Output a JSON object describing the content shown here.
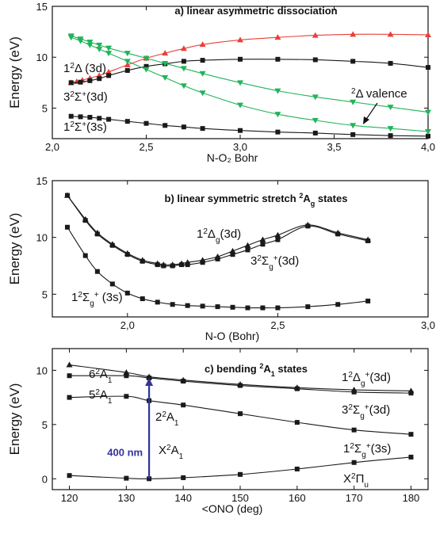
{
  "chart_data": [
    {
      "type": "line",
      "title": "a) linear asymmetric dissociation",
      "xlabel": "N-O₂ Bohr",
      "ylabel": "Energy (eV)",
      "xlim": [
        2.0,
        4.0
      ],
      "ylim": [
        2,
        15
      ],
      "xticks": [
        "2,0",
        "2,5",
        "3,0",
        "3,5",
        "4,0"
      ],
      "yticks": [
        "5",
        "10",
        "15"
      ],
      "series": [
        {
          "color": "#e8403a",
          "marker": "triangle-up",
          "x": [
            2.1,
            2.13,
            2.16,
            2.2,
            2.25,
            2.3,
            2.4,
            2.5,
            2.6,
            2.7,
            2.8,
            3.0,
            3.2,
            3.4,
            3.6,
            3.8,
            4.0
          ],
          "values": [
            7.5,
            7.6,
            7.75,
            7.95,
            8.2,
            8.55,
            9.25,
            9.9,
            10.4,
            10.85,
            11.25,
            11.7,
            11.95,
            12.15,
            12.25,
            12.25,
            12.2
          ]
        },
        {
          "color": "#1a1a1a",
          "marker": "square",
          "x": [
            2.1,
            2.15,
            2.2,
            2.25,
            2.3,
            2.4,
            2.5,
            2.6,
            2.7,
            2.8,
            3.0,
            3.2,
            3.4,
            3.6,
            3.8,
            4.0
          ],
          "values": [
            7.5,
            7.55,
            7.7,
            7.9,
            8.2,
            8.7,
            9.1,
            9.35,
            9.6,
            9.7,
            9.8,
            9.8,
            9.75,
            9.6,
            9.4,
            9.0
          ]
        },
        {
          "color": "#1a1a1a",
          "marker": "square",
          "x": [
            2.1,
            2.15,
            2.2,
            2.25,
            2.3,
            2.4,
            2.5,
            2.6,
            2.7,
            2.8,
            3.0,
            3.2,
            3.4,
            3.6,
            3.8,
            4.0
          ],
          "values": [
            4.2,
            4.15,
            4.1,
            4.0,
            3.9,
            3.7,
            3.5,
            3.3,
            3.15,
            3.0,
            2.8,
            2.65,
            2.55,
            2.4,
            2.3,
            2.25
          ]
        },
        {
          "color": "#20b45a",
          "marker": "triangle-down",
          "x": [
            2.1,
            2.15,
            2.2,
            2.25,
            2.3,
            2.4,
            2.5,
            2.6,
            2.7,
            2.8,
            3.0,
            3.2,
            3.4,
            3.6,
            3.8,
            4.0
          ],
          "values": [
            12.1,
            11.8,
            11.5,
            11.2,
            10.9,
            10.4,
            9.9,
            9.4,
            8.9,
            8.4,
            7.5,
            6.7,
            6.1,
            5.6,
            5.1,
            4.6
          ]
        },
        {
          "color": "#20b45a",
          "marker": "triangle-down",
          "x": [
            2.1,
            2.15,
            2.2,
            2.25,
            2.3,
            2.4,
            2.5,
            2.6,
            2.7,
            2.8,
            3.0,
            3.2,
            3.4,
            3.6,
            3.8,
            4.0
          ],
          "values": [
            11.95,
            11.6,
            11.2,
            10.8,
            10.4,
            9.6,
            8.8,
            8.0,
            7.2,
            6.5,
            5.3,
            4.4,
            3.8,
            3.3,
            3.0,
            2.7
          ]
        }
      ],
      "annotations": [
        {
          "main": "1",
          "sup": "2",
          "rest": "Δ (3d)"
        },
        {
          "main": "3",
          "sup": "2",
          "rest": "Σ",
          "sup2": "+",
          "rest2": "(3d)"
        },
        {
          "main": "1",
          "sup": "2",
          "rest": "Σ",
          "sup2": "+",
          "rest2": "(3s)"
        },
        {
          "main": "",
          "sup": "2",
          "rest": "Δ valence"
        }
      ]
    },
    {
      "type": "line",
      "title": "b) linear symmetric stretch",
      "title_sup": "2",
      "title_end": "A",
      "title_sub": "g",
      "title_tail": "states",
      "xlabel": "N-O (Bohr)",
      "ylabel": "Energy (eV)",
      "xlim": [
        1.75,
        3.0
      ],
      "ylim": [
        3,
        15
      ],
      "xticks": [
        "2,0",
        "2,5",
        "3,0"
      ],
      "yticks": [
        "5",
        "10",
        "15"
      ],
      "series": [
        {
          "color": "#1a1a1a",
          "marker": "triangle-up",
          "x": [
            1.8,
            1.86,
            1.9,
            1.95,
            2.0,
            2.05,
            2.1,
            2.12,
            2.15,
            2.18,
            2.2,
            2.25,
            2.3,
            2.35,
            2.4,
            2.45,
            2.5,
            2.6,
            2.7,
            2.8
          ],
          "values": [
            13.7,
            11.6,
            10.4,
            9.4,
            8.6,
            8.0,
            7.7,
            7.6,
            7.6,
            7.7,
            7.8,
            8.0,
            8.3,
            8.8,
            9.3,
            9.8,
            10.2,
            11.1,
            10.4,
            9.8
          ]
        },
        {
          "color": "#1a1a1a",
          "marker": "square",
          "x": [
            1.8,
            1.86,
            1.9,
            1.95,
            2.0,
            2.05,
            2.1,
            2.12,
            2.15,
            2.18,
            2.2,
            2.25,
            2.3,
            2.35,
            2.4,
            2.45,
            2.5,
            2.6,
            2.7,
            2.8
          ],
          "values": [
            13.7,
            11.5,
            10.3,
            9.3,
            8.5,
            7.9,
            7.6,
            7.5,
            7.5,
            7.6,
            7.6,
            7.8,
            8.1,
            8.5,
            8.9,
            9.4,
            9.8,
            11.0,
            10.3,
            9.7
          ]
        },
        {
          "color": "#1a1a1a",
          "marker": "square",
          "x": [
            1.8,
            1.86,
            1.9,
            1.95,
            2.0,
            2.05,
            2.1,
            2.15,
            2.2,
            2.25,
            2.3,
            2.35,
            2.4,
            2.45,
            2.5,
            2.6,
            2.7,
            2.8
          ],
          "values": [
            10.9,
            8.4,
            7.0,
            5.9,
            5.1,
            4.6,
            4.3,
            4.1,
            4.0,
            3.95,
            3.9,
            3.85,
            3.8,
            3.8,
            3.8,
            3.9,
            4.1,
            4.4
          ]
        }
      ],
      "annotations": [
        {
          "main": "1",
          "sup": "2",
          "rest": "Δ",
          "sub": "g",
          "rest2": "(3d)"
        },
        {
          "main": "3",
          "sup": "2",
          "rest": "Σ",
          "sub": "g",
          "sup2": "+",
          "rest2": "(3d)"
        },
        {
          "main": "1",
          "sup": "2",
          "rest": "Σ",
          "sub": "g",
          "sup2": "+",
          "rest2": " (3s)"
        }
      ]
    },
    {
      "type": "line",
      "title": "c) bending",
      "title_sup": "2",
      "title_end": "A",
      "title_sub": "1",
      "title_tail": "states",
      "xlabel": "<ONO (deg)",
      "ylabel": "Energy (eV)",
      "xlim": [
        117,
        183
      ],
      "ylim": [
        -1,
        12
      ],
      "xticks": [
        "120",
        "130",
        "140",
        "150",
        "160",
        "170",
        "180"
      ],
      "yticks": [
        "0",
        "5",
        "10"
      ],
      "series": [
        {
          "color": "#1a1a1a",
          "marker": "triangle-up",
          "x": [
            120,
            130,
            134,
            140,
            150,
            160,
            170,
            180
          ],
          "values": [
            10.5,
            9.8,
            9.4,
            9.1,
            8.7,
            8.4,
            8.2,
            8.1
          ]
        },
        {
          "color": "#1a1a1a",
          "marker": "square",
          "x": [
            120,
            130,
            134,
            140,
            150,
            160,
            170,
            180
          ],
          "values": [
            9.5,
            9.5,
            9.3,
            9.0,
            8.6,
            8.3,
            8.0,
            7.9
          ]
        },
        {
          "color": "#1a1a1a",
          "marker": "square",
          "x": [
            120,
            130,
            134,
            140,
            150,
            160,
            170,
            180
          ],
          "values": [
            7.5,
            7.6,
            7.2,
            6.8,
            6.0,
            5.2,
            4.5,
            4.1
          ]
        },
        {
          "color": "#1a1a1a",
          "marker": "square",
          "x": [
            120,
            130,
            134,
            140,
            150,
            160,
            170,
            180
          ],
          "values": [
            0.3,
            0.05,
            0.0,
            0.1,
            0.4,
            0.9,
            1.5,
            2.0
          ]
        }
      ],
      "arrow": {
        "x": 134,
        "from": 0.0,
        "to": 9.3,
        "label": "400 nm",
        "color": "#33339a"
      },
      "annotations": [
        {
          "main": "6",
          "sup": "2",
          "rest": "A",
          "sub": "1"
        },
        {
          "main": "5",
          "sup": "2",
          "rest": "A",
          "sub": "1"
        },
        {
          "main": "2",
          "sup": "2",
          "rest": "A",
          "sub": "1"
        },
        {
          "main": "X",
          "sup": "2",
          "rest": "A",
          "sub": "1"
        },
        {
          "main": "1",
          "sup": "2",
          "rest": "Δ",
          "sub": "g",
          "sup2": "+",
          "rest2": "(3d)"
        },
        {
          "main": "3",
          "sup": "2",
          "rest": "Σ",
          "sub": "g",
          "sup2": "+",
          "rest2": "(3d)"
        },
        {
          "main": "1",
          "sup": "2",
          "rest": "Σ",
          "sub": "g",
          "sup2": "+",
          "rest2": "(3s)"
        },
        {
          "main": "X",
          "sup": "2",
          "rest": "Π",
          "sub": "u"
        }
      ]
    }
  ]
}
